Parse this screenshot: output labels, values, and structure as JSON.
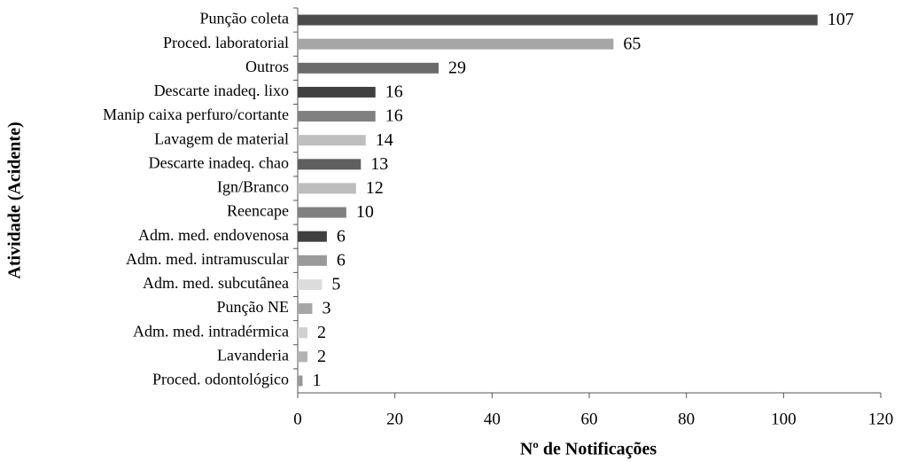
{
  "chart_data": {
    "type": "barh",
    "xlabel": "Nº de Notificações",
    "ylabel": "Atividade (Acidente)",
    "categories": [
      "Punção coleta",
      "Proced. laboratorial",
      "Outros",
      "Descarte inadeq. lixo",
      "Manip caixa perfuro/cortante",
      "Lavagem de material",
      "Descarte inadeq. chao",
      "Ign/Branco",
      "Reencape",
      "Adm. med. endovenosa",
      "Adm. med. intramuscular",
      "Adm. med. subcutânea",
      "Punção NE",
      "Adm. med. intradérmica",
      "Lavanderia",
      "Proced. odontológico"
    ],
    "values": [
      107,
      65,
      29,
      16,
      16,
      14,
      13,
      12,
      10,
      6,
      6,
      5,
      3,
      2,
      2,
      1
    ],
    "colors": [
      "#4d4d4d",
      "#a6a6a6",
      "#6b6b6b",
      "#404040",
      "#808080",
      "#bfbfbf",
      "#5f5f5f",
      "#bdbdbd",
      "#808080",
      "#404040",
      "#999999",
      "#dcdcdc",
      "#a6a6a6",
      "#d0d0d0",
      "#b3b3b3",
      "#999999"
    ],
    "xlim": [
      0,
      120
    ],
    "xticks": [
      0,
      20,
      40,
      60,
      80,
      100,
      120
    ]
  }
}
